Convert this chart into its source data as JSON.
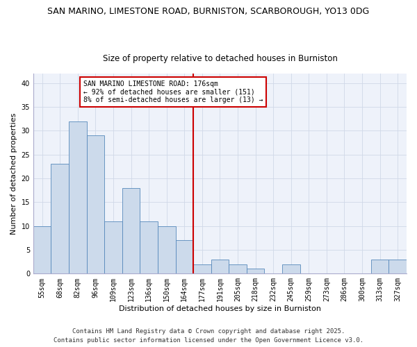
{
  "title1": "SAN MARINO, LIMESTONE ROAD, BURNISTON, SCARBOROUGH, YO13 0DG",
  "title2": "Size of property relative to detached houses in Burniston",
  "xlabel": "Distribution of detached houses by size in Burniston",
  "ylabel": "Number of detached properties",
  "categories": [
    "55sqm",
    "68sqm",
    "82sqm",
    "96sqm",
    "109sqm",
    "123sqm",
    "136sqm",
    "150sqm",
    "164sqm",
    "177sqm",
    "191sqm",
    "205sqm",
    "218sqm",
    "232sqm",
    "245sqm",
    "259sqm",
    "273sqm",
    "286sqm",
    "300sqm",
    "313sqm",
    "327sqm"
  ],
  "values": [
    10,
    23,
    32,
    29,
    11,
    18,
    11,
    10,
    7,
    2,
    3,
    2,
    1,
    0,
    2,
    0,
    0,
    0,
    0,
    3,
    3
  ],
  "bar_color": "#ccdaeb",
  "bar_edge_color": "#5588bb",
  "marker_line_color": "#cc0000",
  "annotation_line1": "SAN MARINO LIMESTONE ROAD: 176sqm",
  "annotation_line2": "← 92% of detached houses are smaller (151)",
  "annotation_line3": "8% of semi-detached houses are larger (13) →",
  "annotation_box_color": "#cc0000",
  "ylim": [
    0,
    42
  ],
  "yticks": [
    0,
    5,
    10,
    15,
    20,
    25,
    30,
    35,
    40
  ],
  "grid_color": "#d0d8e8",
  "bg_color": "#eef2fa",
  "footer1": "Contains HM Land Registry data © Crown copyright and database right 2025.",
  "footer2": "Contains public sector information licensed under the Open Government Licence v3.0.",
  "title1_fontsize": 9,
  "title2_fontsize": 8.5,
  "xlabel_fontsize": 8,
  "ylabel_fontsize": 8,
  "tick_fontsize": 7,
  "footer_fontsize": 6.5,
  "annot_fontsize": 7
}
